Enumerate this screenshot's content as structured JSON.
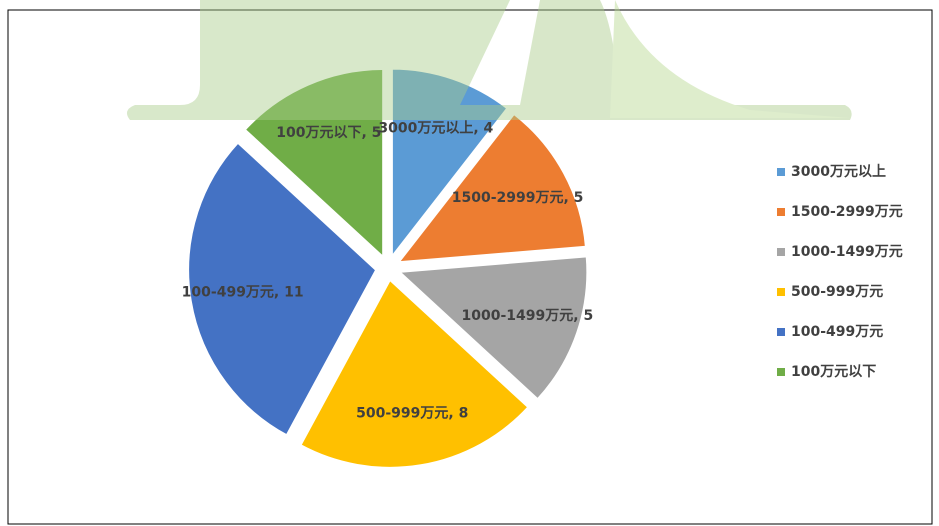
{
  "chart_data": {
    "type": "pie",
    "categories": [
      "3000万元以上",
      "1500-2999万元",
      "1000-1499万元",
      "500-999万元",
      "100-499万元",
      "100万元以下"
    ],
    "values": [
      4,
      5,
      5,
      8,
      11,
      5
    ],
    "value_labels": [
      "3000万元以上, 4",
      "1500-2999万元, 5",
      "1000-1499万元, 5",
      "500-999万元, 8",
      "100-499万元, 11",
      "100万元以下, 5"
    ],
    "colors": [
      "#5b9bd5",
      "#ed7d31",
      "#a5a5a5",
      "#ffc000",
      "#4472c4",
      "#70ad47"
    ],
    "legend": "right"
  }
}
